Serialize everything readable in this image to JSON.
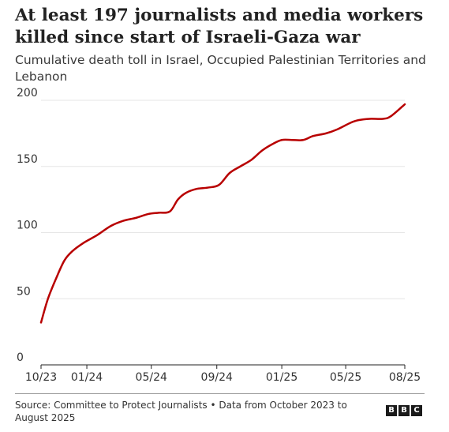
{
  "header": {
    "title": "At least 197 journalists and media workers killed since start of Israeli-Gaza war",
    "subtitle": "Cumulative death toll in Israel, Occupied Palestinian Territories and Lebanon"
  },
  "footer": {
    "source": "Source: Committee to Protect Journalists • Data from October 2023 to August 2025",
    "logo_letters": [
      "B",
      "B",
      "C"
    ]
  },
  "chart_data": {
    "type": "line",
    "title": "At least 197 journalists and media workers killed since start of Israeli-Gaza war",
    "subtitle": "Cumulative death toll in Israel, Occupied Palestinian Territories and Lebanon",
    "xlabel": "",
    "ylabel": "",
    "ylim": [
      0,
      200
    ],
    "yticks": [
      0,
      50,
      100,
      150,
      200
    ],
    "xlim": [
      "2023-10-07",
      "2025-08-20"
    ],
    "xticks": [
      {
        "date": "2023-10-07",
        "label": "10/23"
      },
      {
        "date": "2024-01-01",
        "label": "01/24"
      },
      {
        "date": "2024-05-01",
        "label": "05/24"
      },
      {
        "date": "2024-09-01",
        "label": "09/24"
      },
      {
        "date": "2025-01-01",
        "label": "01/25"
      },
      {
        "date": "2025-05-01",
        "label": "05/25"
      },
      {
        "date": "2025-08-20",
        "label": "08/25"
      }
    ],
    "grid": true,
    "line_color": "#b80000",
    "series": [
      {
        "name": "",
        "x": [
          "2023-10-07",
          "2023-10-20",
          "2023-11-05",
          "2023-11-20",
          "2023-12-05",
          "2023-12-25",
          "2024-01-20",
          "2024-02-15",
          "2024-03-10",
          "2024-04-01",
          "2024-04-25",
          "2024-05-15",
          "2024-06-05",
          "2024-06-20",
          "2024-07-05",
          "2024-07-25",
          "2024-08-15",
          "2024-09-05",
          "2024-09-25",
          "2024-10-15",
          "2024-11-05",
          "2024-11-25",
          "2024-12-15",
          "2025-01-01",
          "2025-01-20",
          "2025-02-10",
          "2025-03-01",
          "2025-03-25",
          "2025-04-15",
          "2025-05-10",
          "2025-05-25",
          "2025-06-15",
          "2025-07-10",
          "2025-07-25",
          "2025-08-20"
        ],
        "values": [
          32,
          50,
          66,
          79,
          86,
          92,
          98,
          105,
          109,
          111,
          114,
          115,
          116,
          125,
          130,
          133,
          134,
          136,
          145,
          150,
          155,
          162,
          167,
          170,
          170,
          170,
          173,
          175,
          178,
          183,
          185,
          186,
          186,
          188,
          197
        ]
      }
    ]
  }
}
